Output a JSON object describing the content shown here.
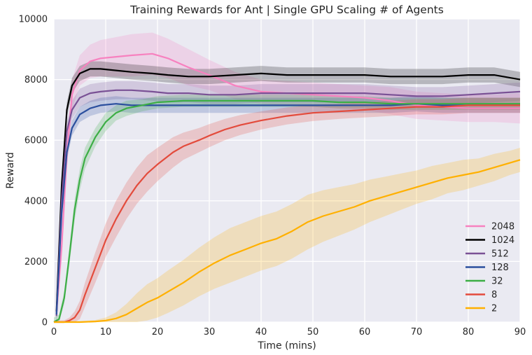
{
  "chart_data": {
    "type": "line",
    "title": "Training Rewards for Ant | Single GPU Scaling # of Agents",
    "xlabel": "Time (mins)",
    "ylabel": "Reward",
    "xlim": [
      0,
      90
    ],
    "ylim": [
      0,
      10000
    ],
    "xticks": [
      0,
      10,
      20,
      30,
      40,
      50,
      60,
      70,
      80,
      90
    ],
    "yticks": [
      0,
      2000,
      4000,
      6000,
      8000,
      10000
    ],
    "grid": true,
    "legend_position": "lower-right",
    "background_color": "#eaeaf2",
    "series": [
      {
        "name": "2048",
        "color": "#f781bf",
        "x": [
          0.5,
          1.5,
          2.5,
          3.5,
          5,
          7,
          9,
          12,
          15,
          19,
          22,
          26,
          30,
          35,
          40,
          45,
          50,
          55,
          60,
          65,
          70,
          75,
          80,
          85,
          90
        ],
        "y": [
          300,
          2500,
          5500,
          7500,
          8300,
          8600,
          8700,
          8750,
          8800,
          8850,
          8700,
          8400,
          8150,
          7800,
          7600,
          7550,
          7500,
          7450,
          7400,
          7300,
          7150,
          7100,
          7050,
          7050,
          7050
        ],
        "band": [
          500,
          500,
          500,
          500,
          500,
          550,
          600,
          650,
          700,
          700,
          650,
          600,
          500,
          450,
          400,
          400,
          400,
          400,
          400,
          450,
          450,
          450,
          450,
          450,
          500
        ]
      },
      {
        "name": "1024",
        "color": "#000000",
        "x": [
          0.5,
          1.5,
          2.5,
          3.5,
          5,
          7,
          9,
          12,
          15,
          19,
          22,
          26,
          30,
          35,
          40,
          45,
          50,
          55,
          60,
          65,
          70,
          75,
          80,
          85,
          90
        ],
        "y": [
          350,
          4500,
          7000,
          7800,
          8200,
          8350,
          8350,
          8300,
          8250,
          8200,
          8150,
          8100,
          8100,
          8150,
          8200,
          8150,
          8150,
          8150,
          8150,
          8100,
          8100,
          8100,
          8150,
          8150,
          8000
        ],
        "band": [
          250,
          250,
          250,
          250,
          250,
          250,
          250,
          250,
          250,
          250,
          250,
          250,
          250,
          250,
          250,
          250,
          250,
          250,
          250,
          250,
          250,
          250,
          250,
          250,
          250
        ]
      },
      {
        "name": "512",
        "color": "#7a5195",
        "x": [
          0.5,
          1.5,
          2.5,
          3.5,
          5,
          7,
          9,
          12,
          15,
          19,
          22,
          26,
          30,
          35,
          40,
          45,
          50,
          55,
          60,
          65,
          70,
          75,
          80,
          85,
          90
        ],
        "y": [
          200,
          4000,
          6300,
          7000,
          7400,
          7550,
          7600,
          7650,
          7650,
          7600,
          7550,
          7550,
          7500,
          7500,
          7550,
          7550,
          7550,
          7550,
          7550,
          7500,
          7450,
          7450,
          7500,
          7550,
          7600
        ],
        "band": [
          300,
          300,
          300,
          300,
          300,
          300,
          300,
          300,
          300,
          300,
          300,
          300,
          300,
          300,
          300,
          300,
          300,
          300,
          300,
          300,
          300,
          300,
          300,
          300,
          300
        ]
      },
      {
        "name": "128",
        "color": "#2b4f9e",
        "x": [
          0.5,
          1.5,
          2.5,
          3.5,
          5,
          7,
          9,
          12,
          15,
          19,
          22,
          26,
          30,
          35,
          40,
          45,
          50,
          55,
          60,
          65,
          70,
          75,
          80,
          85,
          90
        ],
        "y": [
          250,
          3600,
          5600,
          6400,
          6850,
          7050,
          7150,
          7200,
          7150,
          7150,
          7150,
          7150,
          7150,
          7150,
          7150,
          7150,
          7150,
          7150,
          7150,
          7150,
          7200,
          7150,
          7150,
          7150,
          7150
        ],
        "band": [
          250,
          250,
          250,
          250,
          250,
          250,
          250,
          250,
          250,
          250,
          250,
          250,
          250,
          250,
          250,
          250,
          250,
          250,
          250,
          250,
          250,
          250,
          250,
          250,
          250
        ]
      },
      {
        "name": "32",
        "color": "#3cae45",
        "x": [
          0,
          1,
          2,
          3,
          4,
          5,
          6,
          8,
          10,
          12,
          14,
          17,
          20,
          25,
          30,
          35,
          40,
          45,
          50,
          55,
          60,
          65,
          70,
          75,
          80,
          85,
          90
        ],
        "y": [
          0,
          100,
          800,
          2200,
          3700,
          4700,
          5400,
          6100,
          6600,
          6900,
          7050,
          7150,
          7250,
          7300,
          7300,
          7300,
          7300,
          7300,
          7300,
          7250,
          7250,
          7200,
          7200,
          7200,
          7200,
          7200,
          7200
        ],
        "band": [
          150,
          150,
          200,
          300,
          350,
          350,
          350,
          300,
          300,
          250,
          250,
          200,
          200,
          200,
          200,
          200,
          200,
          200,
          200,
          200,
          200,
          200,
          200,
          200,
          200,
          200,
          200
        ]
      },
      {
        "name": "8",
        "color": "#e34b3c",
        "x": [
          0,
          2,
          3,
          4,
          5,
          6,
          8,
          10,
          12,
          14,
          16,
          18,
          20,
          23,
          25,
          28,
          30,
          33,
          36,
          40,
          45,
          50,
          55,
          60,
          65,
          70,
          75,
          80,
          85,
          90
        ],
        "y": [
          0,
          0,
          50,
          150,
          400,
          900,
          1800,
          2700,
          3400,
          4000,
          4500,
          4900,
          5200,
          5600,
          5800,
          6000,
          6150,
          6350,
          6500,
          6650,
          6800,
          6900,
          6950,
          7000,
          7050,
          7100,
          7100,
          7150,
          7150,
          7150
        ],
        "band": [
          50,
          60,
          100,
          200,
          300,
          400,
          500,
          550,
          600,
          600,
          600,
          600,
          550,
          500,
          450,
          400,
          380,
          350,
          330,
          300,
          280,
          270,
          250,
          250,
          250,
          250,
          250,
          250,
          250,
          250
        ]
      },
      {
        "name": "2",
        "color": "#ffb000",
        "x": [
          0,
          5,
          8,
          10,
          12,
          14,
          16,
          18,
          20,
          22,
          25,
          28,
          31,
          34,
          37,
          40,
          43,
          46,
          49,
          52,
          55,
          58,
          61,
          64,
          67,
          70,
          73,
          76,
          79,
          82,
          85,
          88,
          90
        ],
        "y": [
          0,
          0,
          20,
          50,
          120,
          250,
          450,
          650,
          800,
          1000,
          1300,
          1650,
          1950,
          2200,
          2400,
          2600,
          2750,
          3000,
          3300,
          3500,
          3650,
          3800,
          4000,
          4150,
          4300,
          4450,
          4600,
          4750,
          4850,
          4950,
          5100,
          5250,
          5350
        ],
        "band": [
          30,
          30,
          50,
          100,
          200,
          350,
          500,
          600,
          650,
          700,
          750,
          800,
          850,
          900,
          900,
          900,
          900,
          900,
          900,
          850,
          800,
          750,
          700,
          650,
          600,
          550,
          550,
          500,
          500,
          450,
          450,
          400,
          400
        ]
      }
    ]
  }
}
